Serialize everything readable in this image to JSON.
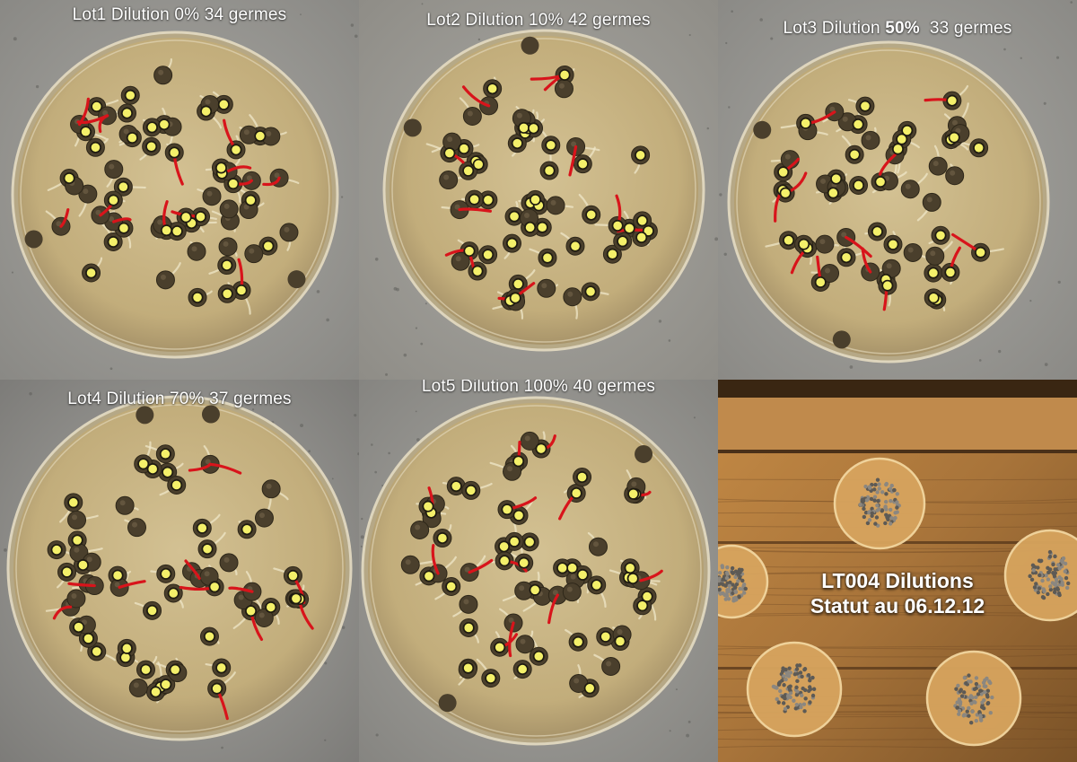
{
  "panels": [
    {
      "lot": "Lot1",
      "dilution_word": "Dilution",
      "dilution": "0%",
      "count": "34",
      "unit": "germes"
    },
    {
      "lot": "Lot2",
      "dilution_word": "Dilution",
      "dilution": "10%",
      "count": "42",
      "unit": "germes"
    },
    {
      "lot": "Lot3",
      "dilution_word": "Dilution",
      "dilution": "50%",
      "count": "33",
      "unit": "germes"
    },
    {
      "lot": "Lot4",
      "dilution_word": "Dilution",
      "dilution": "70%",
      "count": "37",
      "unit": "germes"
    },
    {
      "lot": "Lot5",
      "dilution_word": "Dilution",
      "dilution": "100%",
      "count": "40",
      "unit": "germes"
    }
  ],
  "summary": {
    "line1": "LT004 Dilutions",
    "line2": "Statut au 06.12.12"
  },
  "colors": {
    "marker": "#f4f06a",
    "radicle": "#d8141b",
    "agar": "#c9b68a",
    "wood": "#b8803e"
  }
}
